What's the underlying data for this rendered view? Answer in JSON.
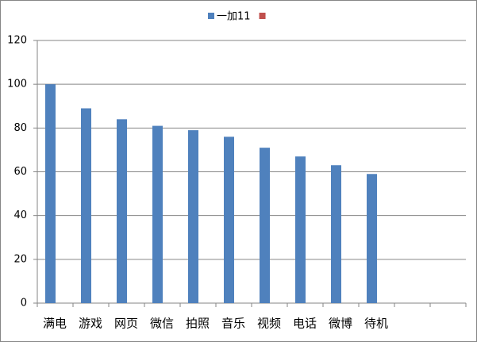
{
  "chart_data": {
    "type": "bar",
    "categories": [
      "满电",
      "游戏",
      "网页",
      "微信",
      "拍照",
      "音乐",
      "视频",
      "电话",
      "微博",
      "待机",
      null,
      null
    ],
    "series": [
      {
        "name": "一加11",
        "color": "#4f81bd",
        "values": [
          100,
          89,
          84,
          81,
          79,
          76,
          71,
          67,
          63,
          59,
          null,
          null
        ]
      },
      {
        "color": "#c0504d",
        "values": [
          null,
          null,
          null,
          null,
          null,
          null,
          null,
          null,
          null,
          null,
          null,
          null
        ]
      }
    ],
    "ylim": [
      0,
      120
    ],
    "yticks": [
      0,
      20,
      40,
      60,
      80,
      100,
      120
    ],
    "grid": true,
    "legend": "top"
  }
}
